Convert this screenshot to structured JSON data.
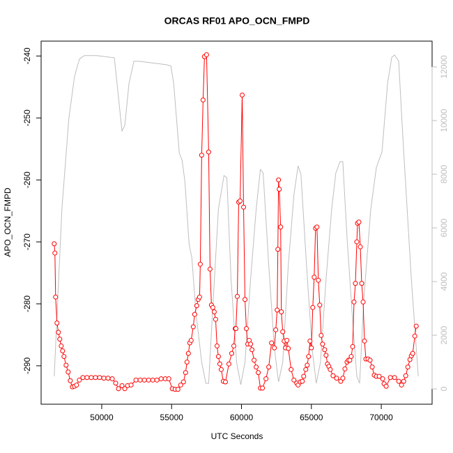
{
  "chart_data": {
    "type": "line",
    "title": "ORCAS RF01 APO_OCN_FMPD",
    "x_label": "UTC Seconds",
    "y_label": "APO_OCN_FMPD",
    "xlim": [
      45664,
      73636
    ],
    "ylim": [
      -296.2,
      -237.6
    ],
    "y2lim": [
      -570,
      12960
    ],
    "xticks": [
      50000,
      55000,
      60000,
      65000,
      70000
    ],
    "yticks": [
      -240,
      -250,
      -260,
      -270,
      -280,
      -290
    ],
    "y2ticks": [
      0,
      2000,
      4000,
      6000,
      8000,
      10000,
      12000
    ],
    "series": [
      {
        "color": "#bebebe",
        "axis": "y2",
        "markers": false,
        "x": [
          46600,
          47150,
          47650,
          48050,
          48400,
          48750,
          49650,
          50900,
          51150,
          51450,
          51650,
          51950,
          52300,
          52650,
          54650,
          54950,
          55150,
          55550,
          55750,
          55950,
          56250,
          56450,
          56750,
          57150,
          57450,
          57650,
          57950,
          58350,
          58750,
          58950,
          59250,
          59650,
          59950,
          60250,
          60650,
          61050,
          61350,
          61550,
          61950,
          62350,
          62650,
          62950,
          63350,
          63750,
          64050,
          64250,
          64650,
          65050,
          65350,
          65650,
          66050,
          66450,
          66750,
          67050,
          67250,
          67550,
          67950,
          68250,
          68450,
          68750,
          69250,
          69650,
          70050,
          70450,
          70750,
          70950,
          71250,
          71550,
          72150,
          72650
        ],
        "values": [
          468,
          6700,
          10080,
          11640,
          12290,
          12420,
          12420,
          12340,
          11120,
          9610,
          9820,
          11380,
          12210,
          12210,
          12080,
          12030,
          11380,
          8780,
          8520,
          7740,
          5400,
          4880,
          2810,
          990,
          210,
          210,
          3060,
          6700,
          7950,
          7870,
          4100,
          990,
          160,
          990,
          4100,
          6700,
          8180,
          8050,
          4620,
          1510,
          260,
          990,
          4620,
          7220,
          8310,
          8000,
          4620,
          1510,
          210,
          990,
          4100,
          6700,
          8050,
          8470,
          8470,
          5660,
          2550,
          470,
          210,
          3320,
          6700,
          8260,
          8830,
          11380,
          12360,
          12440,
          12210,
          9300,
          4100,
          470
        ]
      },
      {
        "color": "#ff0000",
        "axis": "y",
        "markers": true,
        "x": [
          46600,
          46650,
          46700,
          46800,
          46900,
          47000,
          47100,
          47200,
          47300,
          47450,
          47600,
          47750,
          47900,
          48050,
          48200,
          48400,
          48650,
          48950,
          49250,
          49550,
          49850,
          50150,
          50450,
          50750,
          51000,
          51200,
          51450,
          51650,
          51850,
          52100,
          52450,
          52750,
          53050,
          53350,
          53650,
          53950,
          54250,
          54550,
          54800,
          55050,
          55250,
          55450,
          55650,
          55850,
          56000,
          56100,
          56200,
          56300,
          56400,
          56550,
          56650,
          56800,
          56900,
          57000,
          57050,
          57150,
          57250,
          57350,
          57500,
          57650,
          57750,
          57850,
          57950,
          58050,
          58150,
          58250,
          58350,
          58450,
          58550,
          58700,
          58850,
          59100,
          59300,
          59450,
          59550,
          59600,
          59700,
          59800,
          59900,
          60050,
          60150,
          60250,
          60350,
          60450,
          60550,
          60650,
          60750,
          60900,
          61050,
          61200,
          61350,
          61500,
          61750,
          61950,
          62150,
          62350,
          62450,
          62550,
          62600,
          62650,
          62700,
          62800,
          62850,
          62950,
          63050,
          63150,
          63250,
          63350,
          63550,
          63750,
          63950,
          64050,
          64200,
          64350,
          64450,
          64600,
          64700,
          64800,
          64900,
          65000,
          65100,
          65200,
          65300,
          65400,
          65500,
          65600,
          65700,
          65800,
          65950,
          66050,
          66150,
          66250,
          66350,
          66550,
          66800,
          67100,
          67250,
          67400,
          67550,
          67650,
          67750,
          67850,
          67950,
          68050,
          68150,
          68250,
          68300,
          68400,
          68500,
          68600,
          68700,
          68800,
          68900,
          69050,
          69200,
          69350,
          69500,
          69650,
          69850,
          70100,
          70200,
          70350,
          70650,
          70950,
          71250,
          71450,
          71600,
          71750,
          71900,
          72050,
          72150,
          72250,
          72400,
          72500
        ],
        "values": [
          -270.3,
          -271.8,
          -278.9,
          -283.1,
          -284.6,
          -285.7,
          -286.8,
          -287.6,
          -288.5,
          -289.9,
          -291.0,
          -292.4,
          -293.4,
          -293.3,
          -293.1,
          -292.3,
          -291.9,
          -291.9,
          -291.9,
          -291.9,
          -291.9,
          -292.0,
          -292.0,
          -292.1,
          -292.8,
          -293.7,
          -293.2,
          -293.7,
          -293.2,
          -293.1,
          -292.3,
          -292.3,
          -292.3,
          -292.3,
          -292.3,
          -292.3,
          -292.1,
          -292.1,
          -292.1,
          -293.7,
          -293.8,
          -293.8,
          -293.1,
          -292.6,
          -291.1,
          -289.4,
          -288.0,
          -286.3,
          -285.9,
          -283.7,
          -281.7,
          -280.3,
          -279.3,
          -278.9,
          -273.6,
          -256.0,
          -247.1,
          -240.1,
          -239.8,
          -255.5,
          -274.4,
          -280.2,
          -280.6,
          -281.3,
          -282.5,
          -286.8,
          -288.5,
          -289.7,
          -290.6,
          -292.5,
          -292.6,
          -289.7,
          -288.0,
          -286.8,
          -284.0,
          -284.0,
          -278.8,
          -263.6,
          -263.4,
          -246.3,
          -264.4,
          -279.3,
          -284.0,
          -286.5,
          -285.9,
          -286.5,
          -287.4,
          -289.1,
          -290.2,
          -291.1,
          -293.6,
          -293.6,
          -292.1,
          -290.2,
          -286.3,
          -287.1,
          -284.2,
          -281.0,
          -271.2,
          -260.0,
          -261.5,
          -267.6,
          -281.3,
          -284.5,
          -286.0,
          -287.1,
          -285.9,
          -287.2,
          -290.6,
          -292.3,
          -292.8,
          -293.1,
          -292.6,
          -292.5,
          -291.7,
          -290.6,
          -289.9,
          -288.5,
          -286.0,
          -287.1,
          -280.6,
          -275.7,
          -267.8,
          -267.6,
          -276.2,
          -280.2,
          -285.1,
          -286.5,
          -287.4,
          -288.3,
          -289.7,
          -290.1,
          -290.6,
          -291.6,
          -292.0,
          -292.5,
          -292.0,
          -290.5,
          -289.4,
          -289.1,
          -289.1,
          -288.5,
          -286.9,
          -279.7,
          -276.7,
          -270.0,
          -267.0,
          -266.8,
          -270.8,
          -276.7,
          -279.7,
          -286.0,
          -288.9,
          -288.9,
          -289.1,
          -290.2,
          -291.5,
          -291.7,
          -291.7,
          -292.1,
          -292.9,
          -293.3,
          -291.9,
          -291.9,
          -292.5,
          -293.1,
          -292.5,
          -291.6,
          -290.2,
          -289.0,
          -288.4,
          -288.0,
          -285.2,
          -283.6
        ]
      }
    ]
  }
}
